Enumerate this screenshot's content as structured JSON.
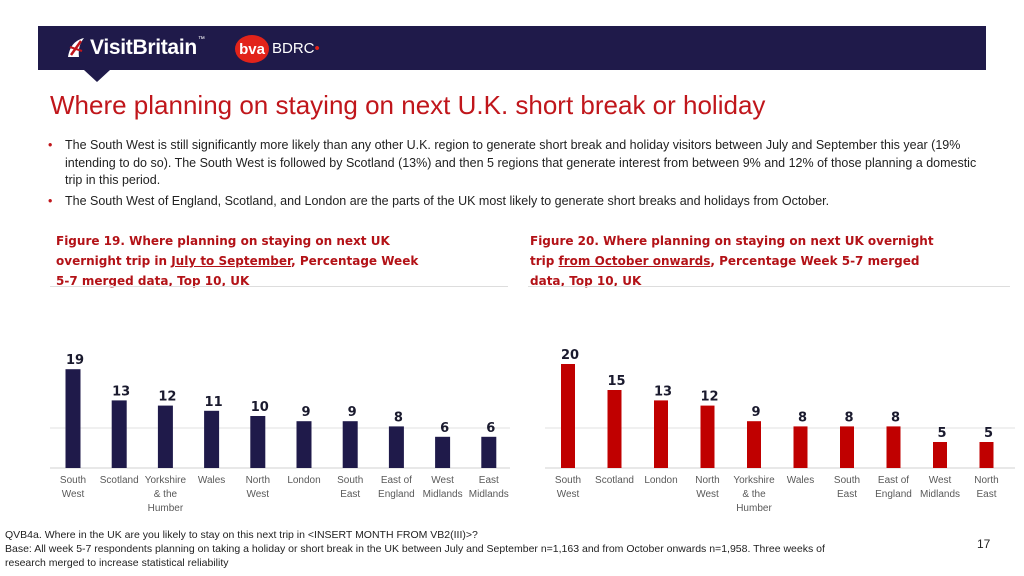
{
  "header": {
    "brand_primary": "VisitBritain",
    "brand_trademark": "™",
    "brand_secondary_badge": "bva",
    "brand_secondary_name": "BDRC",
    "band_color": "#1f1a4a",
    "accent_red": "#e2231a"
  },
  "title": "Where planning on staying on next U.K. short break or holiday",
  "bullets": [
    "The South West is still significantly more likely than any other U.K. region to generate short break and holiday visitors between July and September this year (19% intending to do so). The South West is followed by Scotland (13%) and then 5 regions that generate interest from between 9% and 12% of those planning a domestic trip in this period.",
    "The South West of England, Scotland, and London are the parts of the UK most likely to generate short breaks and holidays from October."
  ],
  "figures": [
    {
      "title_line1": "Figure 19. Where planning on staying on next UK",
      "title_line2_pre": "overnight trip in ",
      "title_line2_underline": "July to September",
      "title_line2_post": ", Percentage Week",
      "title_line3": "5-7 merged data, Top 10, UK"
    },
    {
      "title_line1": "Figure 20. Where planning on staying on next UK overnight",
      "title_line2_pre": "trip ",
      "title_line2_underline": "from October onwards",
      "title_line2_post": ", Percentage Week 5-7 merged",
      "title_line3": "data, Top 10, UK"
    }
  ],
  "chart_data": [
    {
      "type": "bar",
      "title": "Figure 19. Where planning on staying on next UK overnight trip in July to September, Percentage Week 5-7 merged data, Top 10, UK",
      "categories": [
        [
          "South",
          "West"
        ],
        [
          "Scotland"
        ],
        [
          "Yorkshire",
          "& the",
          "Humber"
        ],
        [
          "Wales"
        ],
        [
          "North",
          "West"
        ],
        [
          "London"
        ],
        [
          "South",
          "East"
        ],
        [
          "East of",
          "England"
        ],
        [
          "West",
          "Midlands"
        ],
        [
          "East",
          "Midlands"
        ]
      ],
      "values": [
        19,
        13,
        12,
        11,
        10,
        9,
        9,
        8,
        6,
        6
      ],
      "ylim": [
        0,
        25
      ],
      "color": "#1f1a4a",
      "xlabel": "",
      "ylabel": ""
    },
    {
      "type": "bar",
      "title": "Figure 20. Where planning on staying on next UK overnight trip from October onwards, Percentage Week 5-7 merged data, Top 10, UK",
      "categories": [
        [
          "South",
          "West"
        ],
        [
          "Scotland"
        ],
        [
          "London"
        ],
        [
          "North",
          "West"
        ],
        [
          "Yorkshire",
          "& the",
          "Humber"
        ],
        [
          "Wales"
        ],
        [
          "South",
          "East"
        ],
        [
          "East of",
          "England"
        ],
        [
          "West",
          "Midlands"
        ],
        [
          "North",
          "East"
        ]
      ],
      "values": [
        20,
        15,
        13,
        12,
        9,
        8,
        8,
        8,
        5,
        5
      ],
      "ylim": [
        0,
        25
      ],
      "color": "#c00000",
      "xlabel": "",
      "ylabel": ""
    }
  ],
  "footnote": {
    "line1": "QVB4a.  Where in the UK are you likely to stay on this next trip in <INSERT MONTH FROM VB2(III)>?",
    "line2": "Base: All week 5-7 respondents planning on taking a holiday or short break in the UK between July and September n=1,163 and from October onwards n=1,958. Three weeks of research merged to increase statistical reliability"
  },
  "page_number": "17"
}
